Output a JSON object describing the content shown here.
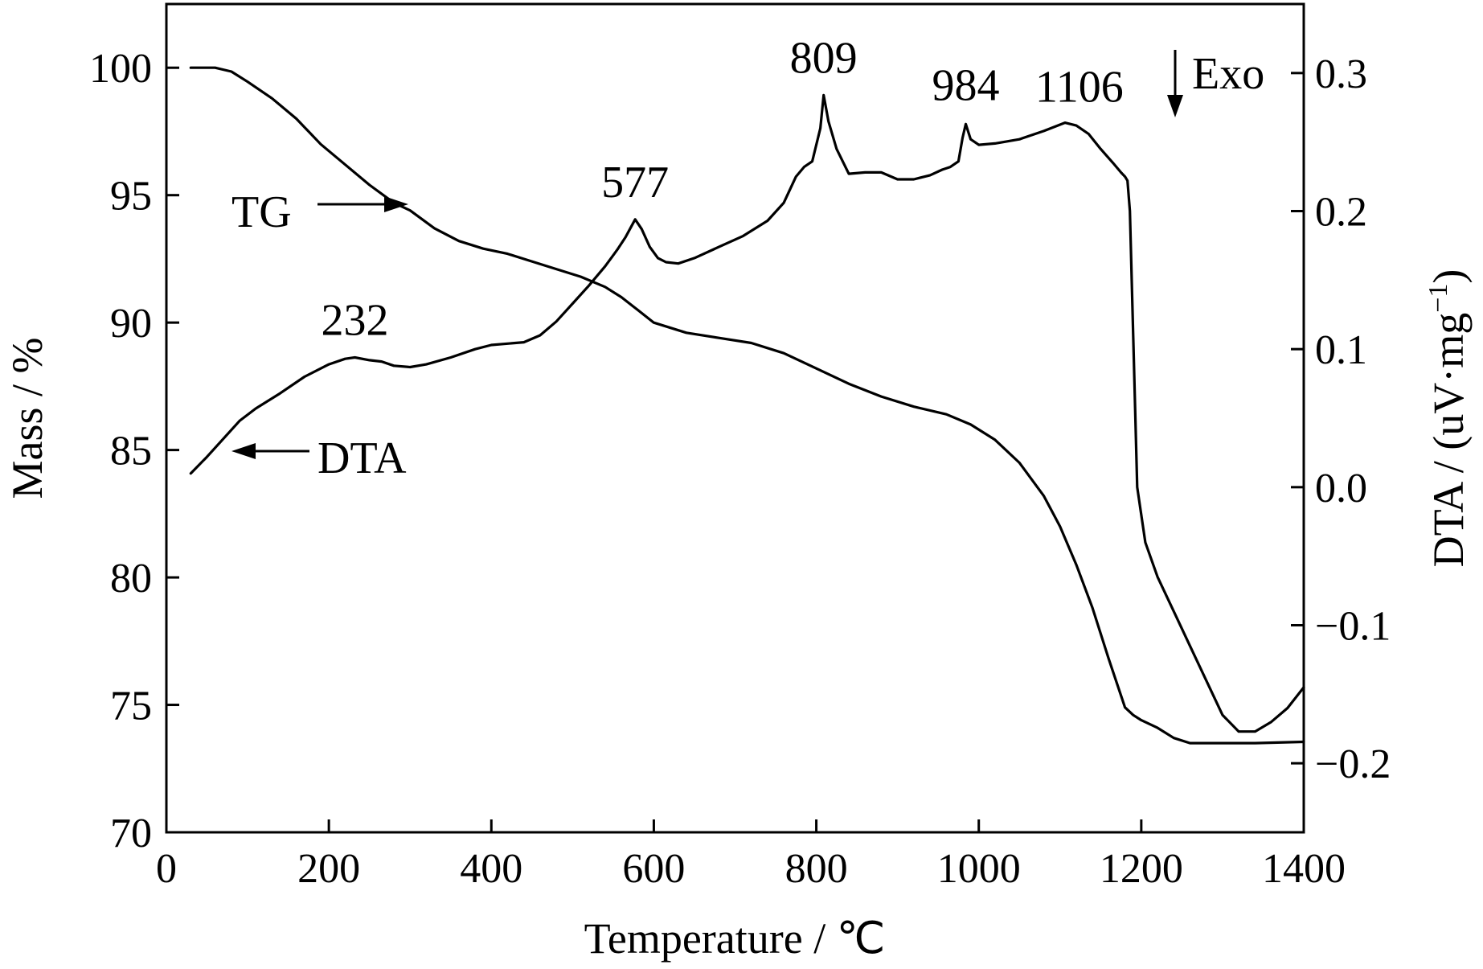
{
  "chart_data": {
    "type": "line",
    "title": "",
    "xlabel": "Temperature / ℃",
    "ylabel_left": "Mass / %",
    "ylabel_right": "DTA / (uV·mg",
    "ylabel_right_sup": "−1",
    "ylabel_right_close": ")",
    "xlim": [
      0,
      1400
    ],
    "ylim_left": [
      70,
      102.5
    ],
    "ylim_right": [
      -0.25,
      0.35
    ],
    "x_ticks": [
      "0",
      "200",
      "400",
      "600",
      "800",
      "1000",
      "1200",
      "1400"
    ],
    "y_left_ticks": [
      "70",
      "75",
      "80",
      "85",
      "90",
      "95",
      "100"
    ],
    "y_right_ticks": [
      "−0.2",
      "−0.1",
      "0.0",
      "0.1",
      "0.2",
      "0.3"
    ],
    "grid": false,
    "series": [
      {
        "name": "TG",
        "axis": "left",
        "x": [
          30,
          60,
          80,
          100,
          130,
          160,
          190,
          220,
          250,
          280,
          300,
          330,
          360,
          390,
          420,
          450,
          480,
          510,
          540,
          560,
          580,
          600,
          640,
          680,
          720,
          760,
          800,
          840,
          880,
          920,
          960,
          990,
          1020,
          1050,
          1080,
          1100,
          1120,
          1140,
          1160,
          1180,
          1190,
          1200,
          1220,
          1240,
          1260,
          1280,
          1300,
          1340,
          1400
        ],
        "y": [
          100,
          100,
          99.85,
          99.45,
          98.8,
          98.0,
          97.0,
          96.2,
          95.4,
          94.7,
          94.4,
          93.7,
          93.2,
          92.9,
          92.7,
          92.4,
          92.1,
          91.8,
          91.4,
          91.0,
          90.5,
          90.0,
          89.6,
          89.4,
          89.2,
          88.8,
          88.2,
          87.6,
          87.1,
          86.7,
          86.4,
          86.0,
          85.4,
          84.5,
          83.2,
          82.0,
          80.5,
          78.8,
          76.8,
          74.9,
          74.6,
          74.4,
          74.1,
          73.7,
          73.5,
          73.5,
          73.5,
          73.5,
          73.55
        ]
      },
      {
        "name": "DTA",
        "axis": "right",
        "x": [
          30,
          50,
          70,
          90,
          110,
          140,
          170,
          200,
          220,
          232,
          250,
          265,
          280,
          300,
          320,
          350,
          380,
          400,
          420,
          440,
          460,
          480,
          500,
          520,
          540,
          555,
          565,
          577,
          585,
          595,
          605,
          615,
          630,
          650,
          680,
          710,
          740,
          760,
          775,
          785,
          795,
          805,
          809,
          815,
          825,
          840,
          860,
          880,
          900,
          920,
          940,
          955,
          965,
          975,
          980,
          984,
          990,
          1000,
          1020,
          1050,
          1080,
          1106,
          1120,
          1135,
          1150,
          1165,
          1175,
          1180,
          1183,
          1186,
          1190,
          1195,
          1205,
          1220,
          1240,
          1260,
          1280,
          1300,
          1320,
          1340,
          1360,
          1380,
          1400
        ],
        "y": [
          0.01,
          0.022,
          0.035,
          0.048,
          0.057,
          0.068,
          0.08,
          0.089,
          0.093,
          0.094,
          0.092,
          0.091,
          0.088,
          0.087,
          0.089,
          0.094,
          0.1,
          0.103,
          0.104,
          0.105,
          0.11,
          0.12,
          0.133,
          0.146,
          0.16,
          0.172,
          0.181,
          0.194,
          0.187,
          0.174,
          0.166,
          0.163,
          0.162,
          0.166,
          0.174,
          0.182,
          0.193,
          0.206,
          0.225,
          0.232,
          0.236,
          0.26,
          0.284,
          0.265,
          0.245,
          0.227,
          0.228,
          0.228,
          0.223,
          0.223,
          0.226,
          0.23,
          0.232,
          0.236,
          0.253,
          0.263,
          0.252,
          0.248,
          0.249,
          0.252,
          0.258,
          0.264,
          0.262,
          0.256,
          0.245,
          0.235,
          0.228,
          0.225,
          0.222,
          0.2,
          0.11,
          0.0,
          -0.04,
          -0.065,
          -0.09,
          -0.115,
          -0.14,
          -0.165,
          -0.177,
          -0.177,
          -0.17,
          -0.16,
          -0.145
        ]
      }
    ],
    "annotations": [
      {
        "text": "232",
        "x": 232,
        "axis": "right",
        "y": 0.094
      },
      {
        "text": "577",
        "x": 577,
        "axis": "right",
        "y": 0.194
      },
      {
        "text": "809",
        "x": 809,
        "axis": "right",
        "y": 0.284
      },
      {
        "text": "984",
        "x": 984,
        "axis": "right",
        "y": 0.263
      },
      {
        "text": "1106",
        "x": 1106,
        "axis": "right",
        "y": 0.264
      }
    ],
    "curve_labels": {
      "tg": "TG",
      "dta": "DTA",
      "exo": "Exo"
    }
  }
}
